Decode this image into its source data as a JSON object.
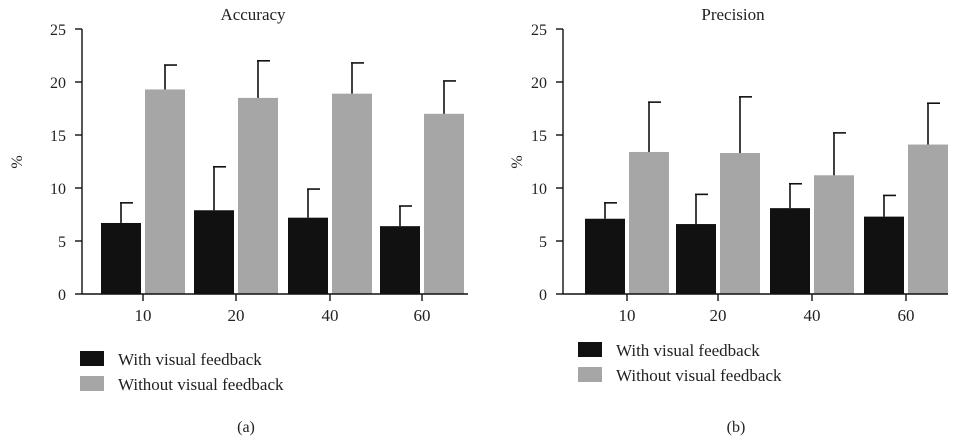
{
  "chart_data": [
    {
      "type": "bar",
      "panel": "(a)",
      "title": "Accuracy",
      "ylabel": "%",
      "xlabel": "",
      "categories": [
        "10",
        "20",
        "40",
        "60"
      ],
      "ylim": [
        0,
        25
      ],
      "yticks": [
        0,
        5,
        10,
        15,
        20,
        25
      ],
      "error_bars": "upper, one-sided",
      "legend_position": "bottom-left",
      "grid": false,
      "series": [
        {
          "name": "With visual feedback",
          "color": "#111111",
          "values": [
            6.7,
            7.9,
            7.2,
            6.4
          ],
          "errors": [
            1.9,
            4.1,
            2.7,
            1.9
          ]
        },
        {
          "name": "Without visual feedback",
          "color": "#a6a6a6",
          "values": [
            19.3,
            18.5,
            18.9,
            17.0
          ],
          "errors": [
            2.3,
            3.5,
            2.9,
            3.1
          ]
        }
      ]
    },
    {
      "type": "bar",
      "panel": "(b)",
      "title": "Precision",
      "ylabel": "%",
      "xlabel": "",
      "categories": [
        "10",
        "20",
        "40",
        "60"
      ],
      "ylim": [
        0,
        25
      ],
      "yticks": [
        0,
        5,
        10,
        15,
        20,
        25
      ],
      "error_bars": "upper, one-sided",
      "legend_position": "bottom-left",
      "grid": false,
      "series": [
        {
          "name": "With visual feedback",
          "color": "#111111",
          "values": [
            7.1,
            6.6,
            8.1,
            7.3
          ],
          "errors": [
            1.5,
            2.8,
            2.3,
            2.0
          ]
        },
        {
          "name": "Without visual feedback",
          "color": "#a6a6a6",
          "values": [
            13.4,
            13.3,
            11.2,
            14.1
          ],
          "errors": [
            4.7,
            5.3,
            4.0,
            3.9
          ]
        }
      ]
    }
  ]
}
